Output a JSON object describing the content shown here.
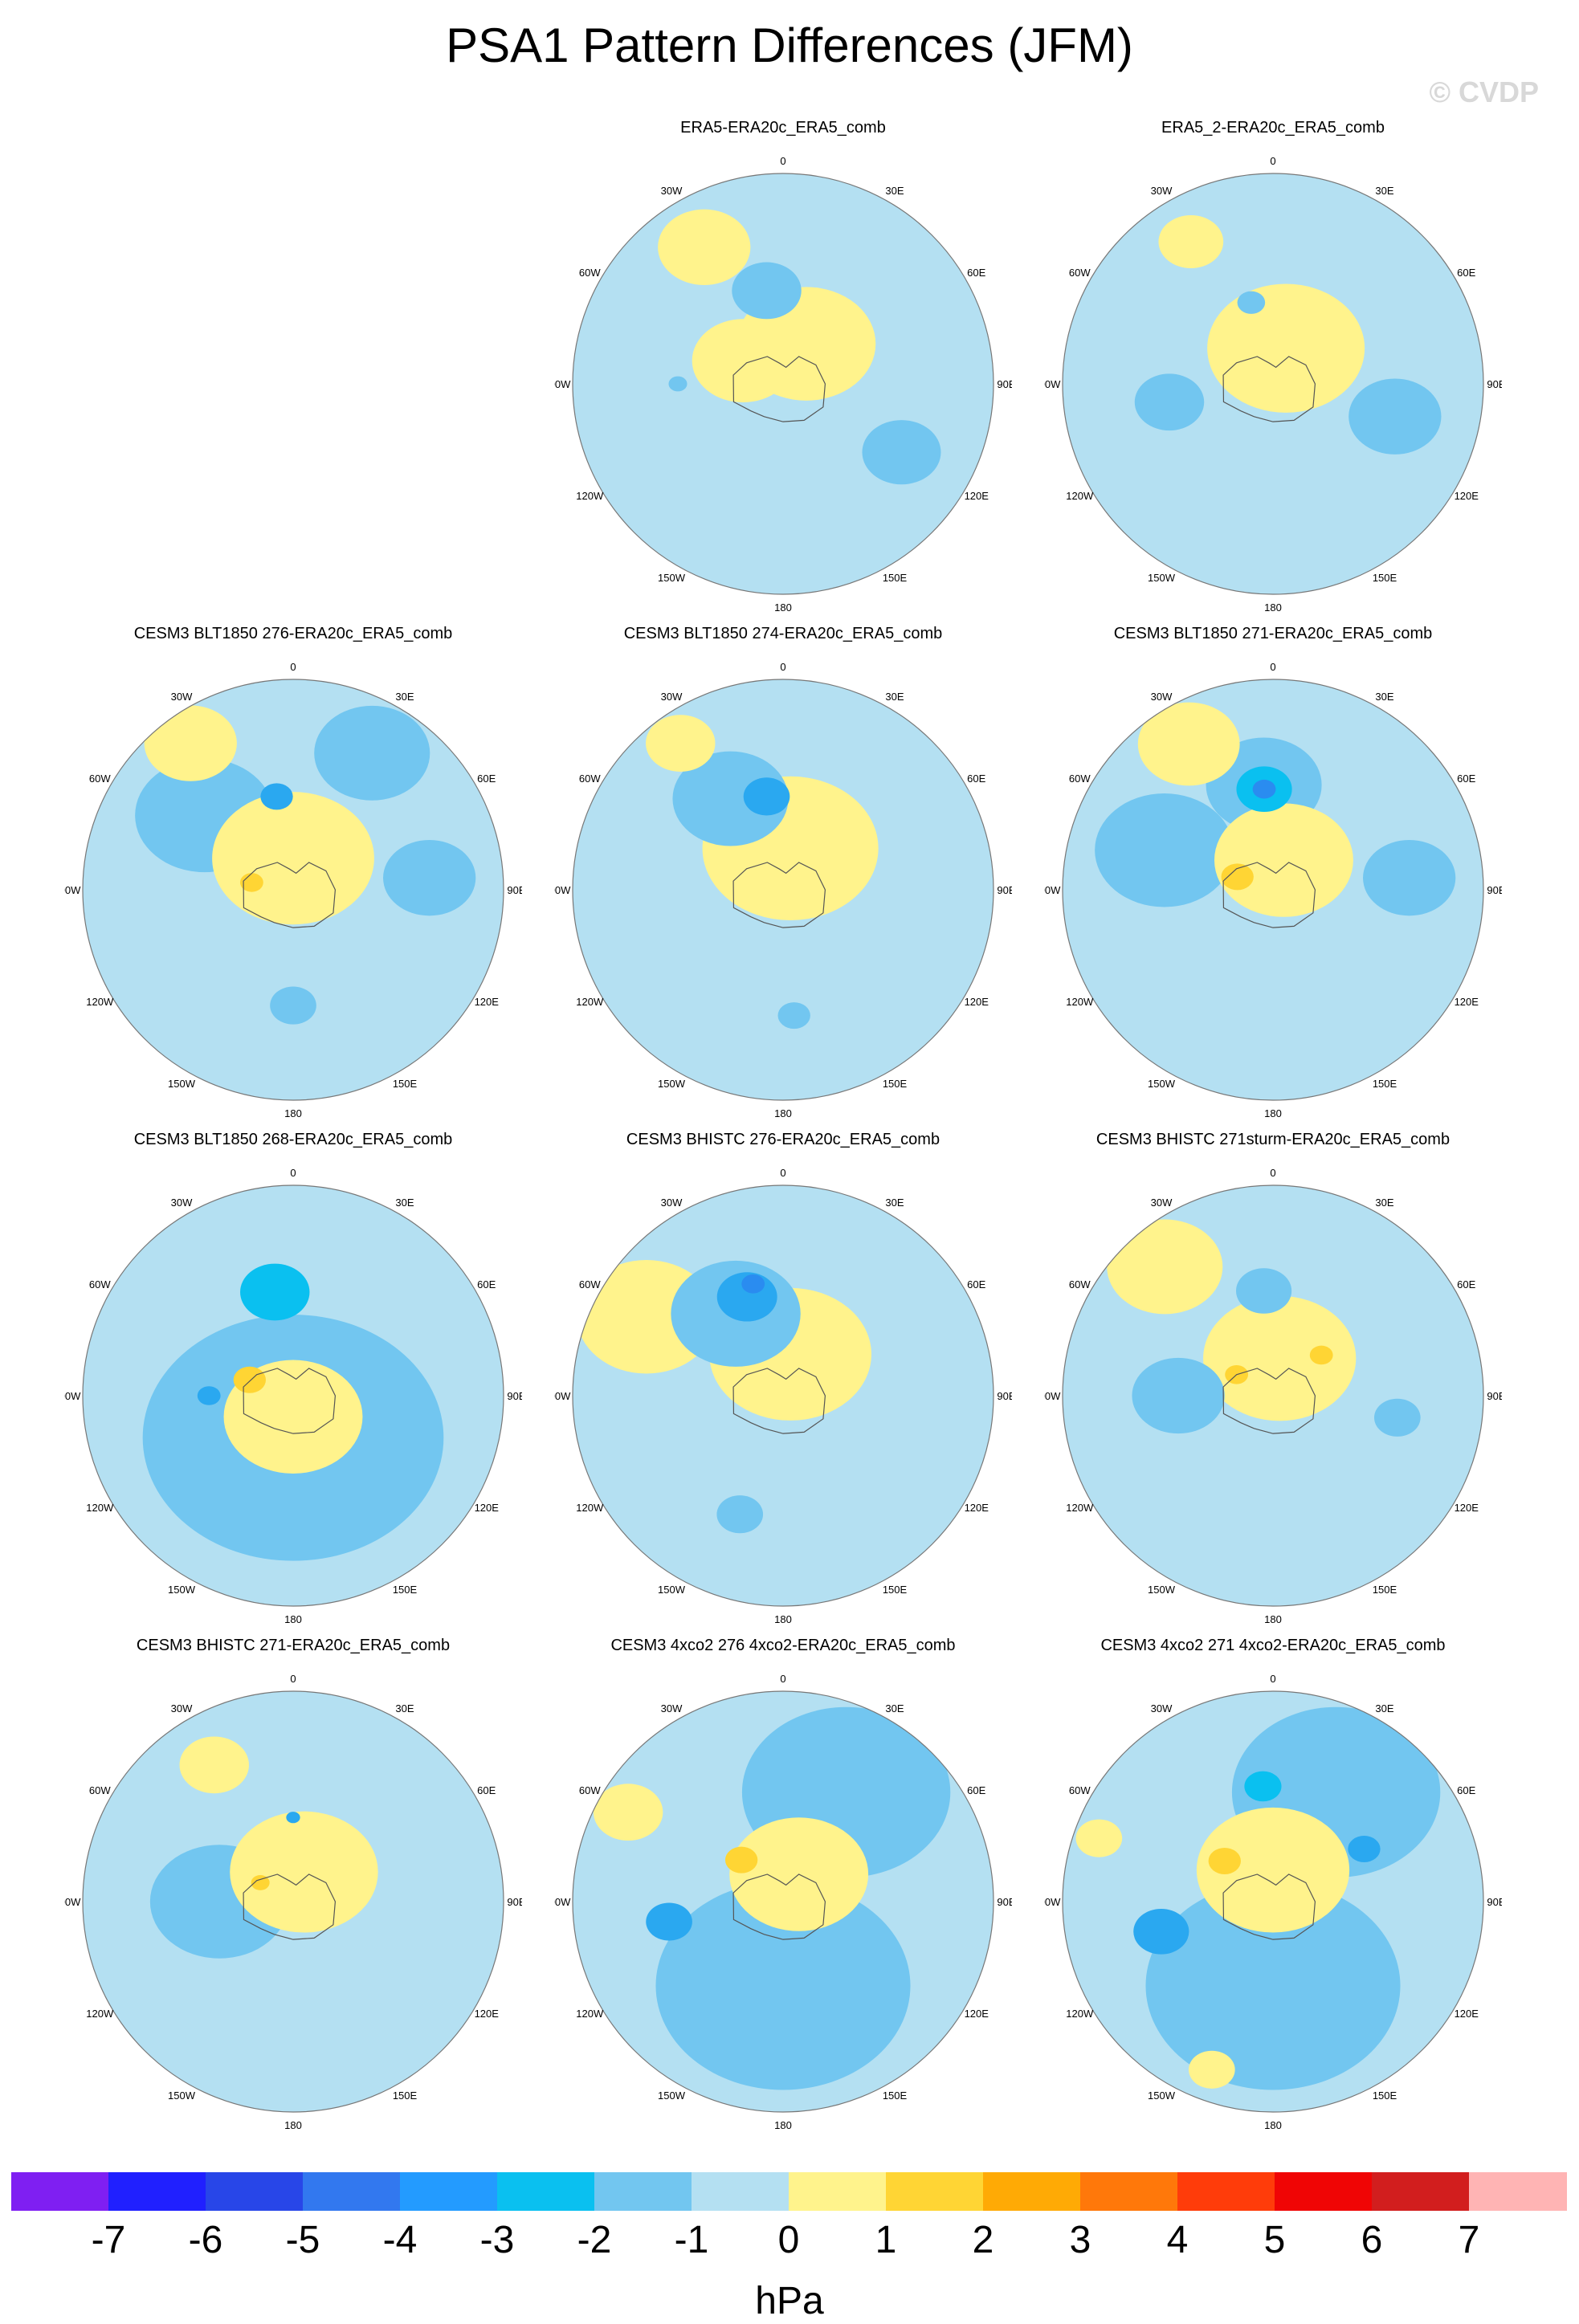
{
  "title": "PSA1 Pattern Differences (JFM)",
  "watermark": "© CVDP",
  "lon_labels": {
    "lon0": "0",
    "lon30e": "30E",
    "lon60e": "60E",
    "lon90e": "90E",
    "lon120e": "120E",
    "lon150e": "150E",
    "lon180": "180",
    "lon150w": "150W",
    "lon120w": "120W",
    "lon90w": "90W",
    "lon60w": "60W",
    "lon30w": "30W"
  },
  "panels": [
    {
      "title": "ERA5-ERA20c_ERA5_comb",
      "blobs": [
        {
          "c": "#fff38c",
          "lon": 150,
          "dist": 0.22,
          "r": 0.3
        },
        {
          "c": "#fff38c",
          "lon": -120,
          "dist": 0.22,
          "r": 0.22
        },
        {
          "c": "#fff38c",
          "lon": -150,
          "dist": 0.75,
          "r": 0.2
        },
        {
          "c": "#72c6f0",
          "lon": -170,
          "dist": 0.45,
          "r": 0.15
        },
        {
          "c": "#72c6f0",
          "lon": 60,
          "dist": 0.65,
          "r": 0.17
        },
        {
          "c": "#72c6f0",
          "lon": -90,
          "dist": 0.5,
          "r": 0.04
        }
      ]
    },
    {
      "title": "ERA5_2-ERA20c_ERA5_comb",
      "blobs": [
        {
          "c": "#fff38c",
          "lon": 160,
          "dist": 0.18,
          "r": 0.34
        },
        {
          "c": "#fff38c",
          "lon": -150,
          "dist": 0.78,
          "r": 0.14
        },
        {
          "c": "#72c6f0",
          "lon": -80,
          "dist": 0.5,
          "r": 0.15
        },
        {
          "c": "#72c6f0",
          "lon": 75,
          "dist": 0.6,
          "r": 0.2
        },
        {
          "c": "#72c6f0",
          "lon": -165,
          "dist": 0.4,
          "r": 0.06
        }
      ]
    },
    {
      "title": "CESM3 BLT1850 276-ERA20c_ERA5_comb",
      "blobs": [
        {
          "c": "#72c6f0",
          "lon": -130,
          "dist": 0.55,
          "r": 0.3
        },
        {
          "c": "#72c6f0",
          "lon": 150,
          "dist": 0.75,
          "r": 0.25
        },
        {
          "c": "#72c6f0",
          "lon": 95,
          "dist": 0.65,
          "r": 0.2
        },
        {
          "c": "#72c6f0",
          "lon": 0,
          "dist": 0.55,
          "r": 0.1
        },
        {
          "c": "#fff38c",
          "lon": 180,
          "dist": 0.15,
          "r": 0.35
        },
        {
          "c": "#fff38c",
          "lon": -145,
          "dist": 0.85,
          "r": 0.2
        },
        {
          "c": "#2aa8f0",
          "lon": -170,
          "dist": 0.45,
          "r": 0.07
        },
        {
          "c": "#ffd534",
          "lon": -100,
          "dist": 0.2,
          "r": 0.05
        }
      ]
    },
    {
      "title": "CESM3 BLT1850 274-ERA20c_ERA5_comb",
      "blobs": [
        {
          "c": "#fff38c",
          "lon": 170,
          "dist": 0.2,
          "r": 0.38
        },
        {
          "c": "#72c6f0",
          "lon": -150,
          "dist": 0.5,
          "r": 0.25
        },
        {
          "c": "#2aa8f0",
          "lon": -170,
          "dist": 0.45,
          "r": 0.1
        },
        {
          "c": "#fff38c",
          "lon": -145,
          "dist": 0.85,
          "r": 0.15
        },
        {
          "c": "#72c6f0",
          "lon": 5,
          "dist": 0.6,
          "r": 0.07
        }
      ]
    },
    {
      "title": "CESM3 BLT1850 271-ERA20c_ERA5_comb",
      "blobs": [
        {
          "c": "#72c6f0",
          "lon": -110,
          "dist": 0.55,
          "r": 0.3
        },
        {
          "c": "#72c6f0",
          "lon": -175,
          "dist": 0.5,
          "r": 0.25
        },
        {
          "c": "#72c6f0",
          "lon": 95,
          "dist": 0.65,
          "r": 0.2
        },
        {
          "c": "#fff38c",
          "lon": 160,
          "dist": 0.15,
          "r": 0.3
        },
        {
          "c": "#fff38c",
          "lon": -150,
          "dist": 0.8,
          "r": 0.22
        },
        {
          "c": "#0ac0f0",
          "lon": -175,
          "dist": 0.48,
          "r": 0.12
        },
        {
          "c": "#2a8cf0",
          "lon": -175,
          "dist": 0.48,
          "r": 0.05
        },
        {
          "c": "#ffd534",
          "lon": -110,
          "dist": 0.18,
          "r": 0.07
        }
      ]
    },
    {
      "title": "CESM3 BLT1850 268-ERA20c_ERA5_comb",
      "blobs": [
        {
          "c": "#72c6f0",
          "lon": 0,
          "dist": 0.2,
          "r": 0.65
        },
        {
          "c": "#fff38c",
          "lon": 0,
          "dist": 0.1,
          "r": 0.3
        },
        {
          "c": "#0ac0f0",
          "lon": -170,
          "dist": 0.5,
          "r": 0.15
        },
        {
          "c": "#2aa8f0",
          "lon": -90,
          "dist": 0.4,
          "r": 0.05
        },
        {
          "c": "#ffd534",
          "lon": -110,
          "dist": 0.22,
          "r": 0.07
        }
      ]
    },
    {
      "title": "CESM3 BHISTC 276-ERA20c_ERA5_comb",
      "blobs": [
        {
          "c": "#fff38c",
          "lon": 170,
          "dist": 0.2,
          "r": 0.35
        },
        {
          "c": "#fff38c",
          "lon": -120,
          "dist": 0.75,
          "r": 0.3
        },
        {
          "c": "#72c6f0",
          "lon": -150,
          "dist": 0.45,
          "r": 0.28
        },
        {
          "c": "#2aa8f0",
          "lon": -160,
          "dist": 0.5,
          "r": 0.13
        },
        {
          "c": "#2a8cf0",
          "lon": -165,
          "dist": 0.55,
          "r": 0.05
        },
        {
          "c": "#72c6f0",
          "lon": -20,
          "dist": 0.6,
          "r": 0.1
        }
      ]
    },
    {
      "title": "CESM3 BHISTC 271sturm-ERA20c_ERA5_comb",
      "blobs": [
        {
          "c": "#fff38c",
          "lon": 170,
          "dist": 0.18,
          "r": 0.33
        },
        {
          "c": "#fff38c",
          "lon": -140,
          "dist": 0.8,
          "r": 0.25
        },
        {
          "c": "#72c6f0",
          "lon": -90,
          "dist": 0.45,
          "r": 0.2
        },
        {
          "c": "#72c6f0",
          "lon": -175,
          "dist": 0.5,
          "r": 0.12
        },
        {
          "c": "#72c6f0",
          "lon": 80,
          "dist": 0.6,
          "r": 0.1
        },
        {
          "c": "#ffd534",
          "lon": 130,
          "dist": 0.3,
          "r": 0.05
        },
        {
          "c": "#ffd534",
          "lon": -120,
          "dist": 0.2,
          "r": 0.05
        }
      ]
    },
    {
      "title": "CESM3 BHISTC 271-ERA20c_ERA5_comb",
      "blobs": [
        {
          "c": "#72c6f0",
          "lon": -90,
          "dist": 0.35,
          "r": 0.3
        },
        {
          "c": "#fff38c",
          "lon": 160,
          "dist": 0.15,
          "r": 0.32
        },
        {
          "c": "#fff38c",
          "lon": -150,
          "dist": 0.75,
          "r": 0.15
        },
        {
          "c": "#ffd534",
          "lon": -120,
          "dist": 0.18,
          "r": 0.04
        },
        {
          "c": "#2aa8f0",
          "lon": 180,
          "dist": 0.4,
          "r": 0.03
        }
      ]
    },
    {
      "title": "CESM3 4xco2 276 4xco2-ERA20c_ERA5_comb",
      "blobs": [
        {
          "c": "#72c6f0",
          "lon": 0,
          "dist": 0.4,
          "r": 0.55
        },
        {
          "c": "#72c6f0",
          "lon": 150,
          "dist": 0.6,
          "r": 0.45
        },
        {
          "c": "#fff38c",
          "lon": 150,
          "dist": 0.15,
          "r": 0.3
        },
        {
          "c": "#2aa8f0",
          "lon": -80,
          "dist": 0.55,
          "r": 0.1
        },
        {
          "c": "#ffd534",
          "lon": -135,
          "dist": 0.28,
          "r": 0.07
        },
        {
          "c": "#fff38c",
          "lon": -120,
          "dist": 0.85,
          "r": 0.15
        }
      ]
    },
    {
      "title": "CESM3 4xco2 271 4xco2-ERA20c_ERA5_comb",
      "blobs": [
        {
          "c": "#72c6f0",
          "lon": 0,
          "dist": 0.4,
          "r": 0.55
        },
        {
          "c": "#72c6f0",
          "lon": 150,
          "dist": 0.6,
          "r": 0.45
        },
        {
          "c": "#fff38c",
          "lon": 180,
          "dist": 0.15,
          "r": 0.33
        },
        {
          "c": "#2aa8f0",
          "lon": -75,
          "dist": 0.55,
          "r": 0.12
        },
        {
          "c": "#0ac0f0",
          "lon": -175,
          "dist": 0.55,
          "r": 0.08
        },
        {
          "c": "#2aa8f0",
          "lon": 120,
          "dist": 0.5,
          "r": 0.07
        },
        {
          "c": "#ffd534",
          "lon": -130,
          "dist": 0.3,
          "r": 0.07
        },
        {
          "c": "#fff38c",
          "lon": -110,
          "dist": 0.88,
          "r": 0.1
        },
        {
          "c": "#fff38c",
          "lon": -20,
          "dist": 0.85,
          "r": 0.1
        }
      ]
    }
  ],
  "colorbar": {
    "colors": [
      "#7f1ff2",
      "#2020ff",
      "#2846e8",
      "#3278ef",
      "#239bff",
      "#0ac0f0",
      "#72c6f0",
      "#b4e0f2",
      "#fff38c",
      "#ffd534",
      "#ffaa05",
      "#ff780a",
      "#ff3c0a",
      "#f00505",
      "#d21e1e",
      "#ffb4b4"
    ],
    "labels": [
      "-7",
      "-6",
      "-5",
      "-4",
      "-3",
      "-2",
      "-1",
      "0",
      "1",
      "2",
      "3",
      "4",
      "5",
      "6",
      "7"
    ],
    "units": "hPa"
  },
  "ocean_color": "#b4e0f2"
}
